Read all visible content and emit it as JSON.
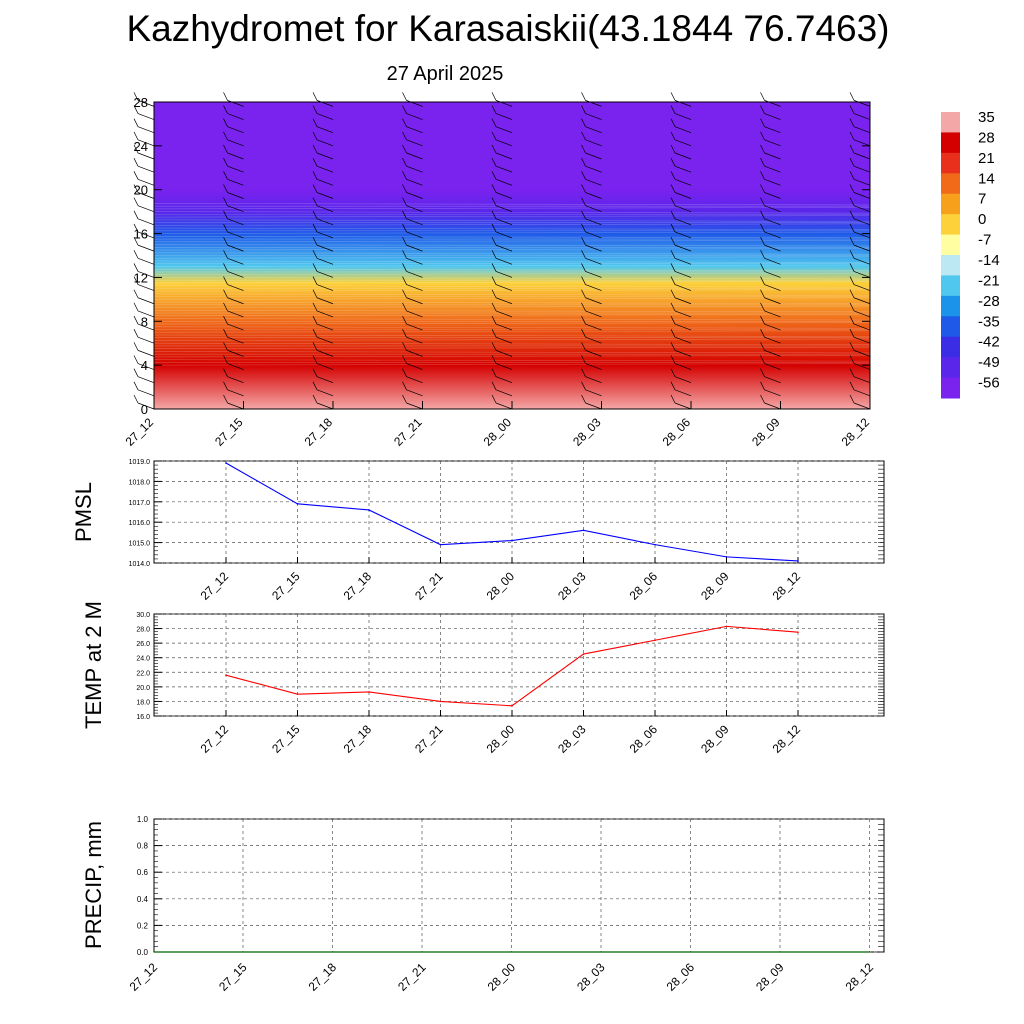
{
  "title": "Kazhydromet for Karasaiskii(43.1844 76.7463)",
  "subtitle": "27 April 2025",
  "chart_data": [
    {
      "type": "heatmap",
      "name": "cross-section",
      "y_ticks": [
        "0",
        "4",
        "8",
        "12",
        "16",
        "20",
        "24",
        "28"
      ],
      "ylim": [
        0,
        28
      ],
      "x_ticks": [
        "27_12",
        "27_15",
        "27_18",
        "27_21",
        "28_00",
        "28_03",
        "28_06",
        "28_09",
        "28_12"
      ],
      "colorbar": {
        "labels": [
          "35",
          "28",
          "21",
          "14",
          "7",
          "0",
          "-7",
          "-14",
          "-21",
          "-28",
          "-35",
          "-42",
          "-49",
          "-56"
        ],
        "colors": [
          "#f4a7a7",
          "#d40000",
          "#e8301c",
          "#f06a1a",
          "#f7a01c",
          "#fcd13a",
          "#fffea0",
          "#bce8f4",
          "#4fc7ee",
          "#1c93ea",
          "#1e59e8",
          "#3b2de6",
          "#5a26ea",
          "#7a22ee"
        ]
      },
      "bands": [
        {
          "y": 0,
          "value": 33
        },
        {
          "y": 4,
          "value": 25
        },
        {
          "y": 8,
          "value": 12
        },
        {
          "y": 11.5,
          "value": -3
        },
        {
          "y": 13,
          "value": -20
        },
        {
          "y": 16,
          "value": -35
        },
        {
          "y": 18,
          "value": -52
        },
        {
          "y": 20,
          "value": -58
        },
        {
          "y": 28,
          "value": -58
        }
      ]
    },
    {
      "type": "line",
      "ylabel": "PMSL",
      "ylim": [
        1014,
        1019
      ],
      "y_ticks": [
        "1014.0",
        "1015.0",
        "1016.0",
        "1017.0",
        "1018.0",
        "1019.0"
      ],
      "categories": [
        "27_12",
        "27_15",
        "27_18",
        "27_21",
        "28_00",
        "28_03",
        "28_06",
        "28_09",
        "28_12"
      ],
      "values": [
        1018.9,
        1016.9,
        1016.6,
        1014.9,
        1015.1,
        1015.6,
        1014.9,
        1014.3,
        1014.1
      ],
      "color": "#0000ff",
      "grid": true
    },
    {
      "type": "line",
      "ylabel": "TEMP at 2 M",
      "ylim": [
        16,
        30
      ],
      "y_ticks": [
        "16.0",
        "18.0",
        "20.0",
        "22.0",
        "24.0",
        "26.0",
        "28.0",
        "30.0"
      ],
      "categories": [
        "27_12",
        "27_15",
        "27_18",
        "27_21",
        "28_00",
        "28_03",
        "28_06",
        "28_09",
        "28_12"
      ],
      "values": [
        21.6,
        19.0,
        19.3,
        18.0,
        17.4,
        24.5,
        26.4,
        28.3,
        27.5
      ],
      "color": "#ff0000",
      "grid": true
    },
    {
      "type": "line",
      "ylabel": "PRECIP, mm",
      "ylim": [
        0,
        1
      ],
      "y_ticks": [
        "0.0",
        "0.2",
        "0.4",
        "0.6",
        "0.8",
        "1.0"
      ],
      "categories": [
        "27_12",
        "27_15",
        "27_18",
        "27_21",
        "28_00",
        "28_03",
        "28_06",
        "28_09",
        "28_12"
      ],
      "values": [
        0,
        0,
        0,
        0,
        0,
        0,
        0,
        0,
        0
      ],
      "color": "#006400",
      "grid": true
    }
  ]
}
